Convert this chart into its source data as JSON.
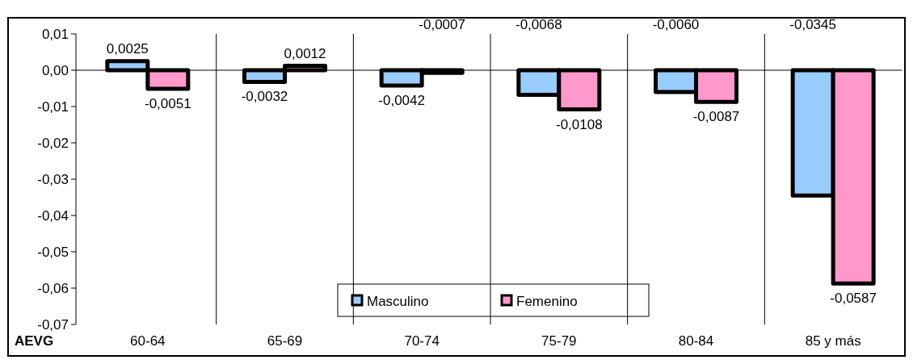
{
  "chart_data": {
    "type": "bar",
    "xlabel": "AEVG",
    "categories": [
      "60-64",
      "65-69",
      "70-74",
      "75-79",
      "80-84",
      "85 y más"
    ],
    "series": [
      {
        "name": "Masculino",
        "color": "#99ccff",
        "values": [
          0.0025,
          -0.0032,
          -0.0042,
          -0.0068,
          -0.006,
          -0.0345
        ]
      },
      {
        "name": "Femenino",
        "color": "#ff99cc",
        "values": [
          -0.0051,
          0.0012,
          -0.0007,
          -0.0108,
          -0.0087,
          -0.0587
        ]
      }
    ],
    "value_labels": [
      [
        "0,0025",
        "-0,0032",
        "-0,0042",
        "-0,0068",
        "-0,0060",
        "-0,0345"
      ],
      [
        "-0,0051",
        "0,0012",
        "-0,0007",
        "-0,0108",
        "-0,0087",
        "-0,0587"
      ]
    ],
    "ylim": [
      -0.07,
      0.01
    ],
    "yticks": [
      {
        "value": 0.01,
        "label": "0,01"
      },
      {
        "value": 0,
        "label": "0,00"
      },
      {
        "value": -0.01,
        "label": "-0,01"
      },
      {
        "value": -0.02,
        "label": "-0,02"
      },
      {
        "value": -0.03,
        "label": "-0,03"
      },
      {
        "value": -0.04,
        "label": "-0,04"
      },
      {
        "value": -0.05,
        "label": "-0,05"
      },
      {
        "value": -0.06,
        "label": "-0,06"
      },
      {
        "value": -0.07,
        "label": "-0,07"
      }
    ],
    "legend": "bottom"
  }
}
